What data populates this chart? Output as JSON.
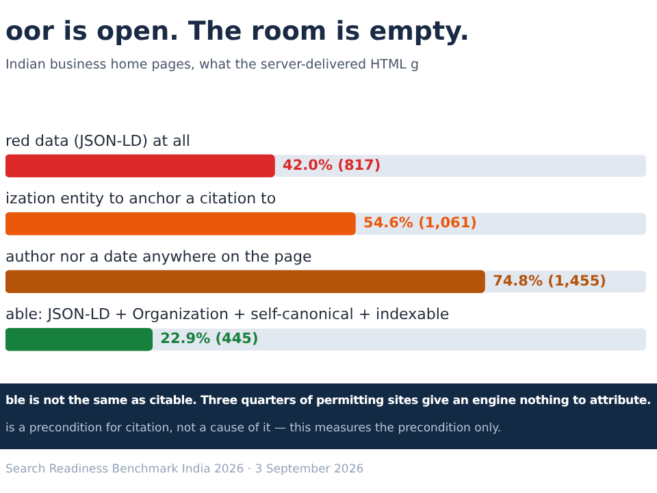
{
  "chart_data": {
    "type": "bar",
    "orientation": "horizontal",
    "title": "oor is open. The room is empty.",
    "subtitle": "Indian business home pages, what the server-delivered HTML g",
    "categories": [
      "red data (JSON-LD) at all",
      "ization entity to anchor a citation to",
      "author nor a date anywhere on the page",
      "able: JSON-LD + Organization + self-canonical + indexable"
    ],
    "values": [
      42.0,
      54.6,
      74.8,
      22.9
    ],
    "colors": [
      "#dc2828",
      "#ea580c",
      "#b4530a",
      "#16803c"
    ],
    "value_labels": [
      "42.0% (817)",
      "54.6% (1,061)",
      "74.8% (1,455)",
      "22.9% (445)"
    ],
    "xlim": [
      0,
      100
    ],
    "tick_labels": false,
    "annotations": [
      "ble is not the same as citable. Three quarters of permitting sites give an engine nothing to attribute.",
      " is a precondition for citation, not a cause of it — this measures the precondition only.",
      "Search Readiness Benchmark India 2026 · 3 September 2026"
    ]
  }
}
